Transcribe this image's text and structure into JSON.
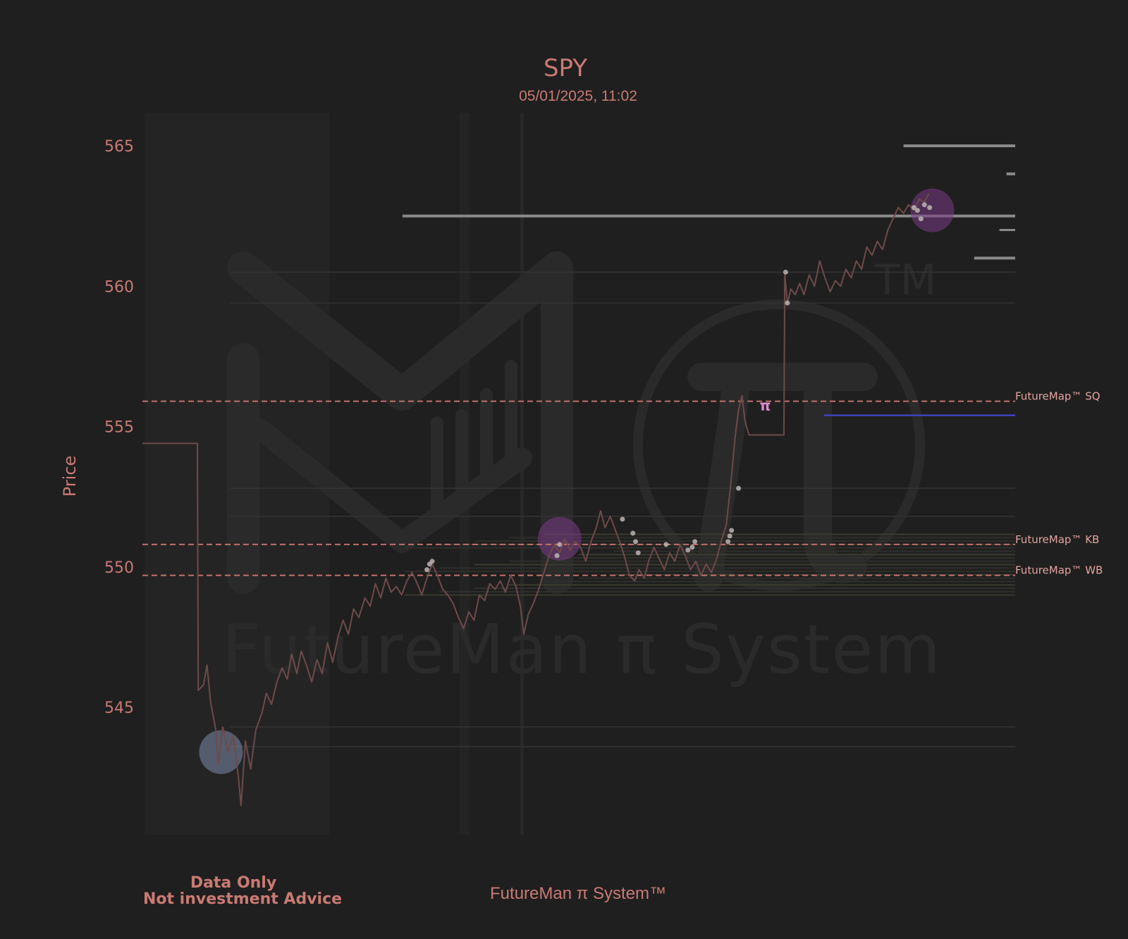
{
  "title": "SPY",
  "subtitle": "05/01/2025, 11:02",
  "watermark": {
    "text": "FutureMan π System",
    "tm": "TM"
  },
  "footer_left": {
    "line1": "Data Only",
    "line2": "Not investment Advice"
  },
  "footer_center": "FutureMan π System™",
  "colors": {
    "background": "#1f1f1f",
    "text": "#c97a73",
    "price_line": "#6e4a4a",
    "level_dashed": "#c0706c",
    "highlight_blue": "#8ea2c8",
    "highlight_purple": "#7a3a85",
    "pi_marker": "#d98cd0",
    "blue_level": "#4848e0",
    "gray_level": "#8a8a8a"
  },
  "chart_data": {
    "type": "line",
    "title": "SPY",
    "subtitle": "05/01/2025, 11:02",
    "xlabel": "",
    "ylabel": "Price",
    "ylim": [
      539.5,
      566.2
    ],
    "yticks": [
      545,
      550,
      555,
      560,
      565
    ],
    "x_range": [
      0,
      100
    ],
    "series": [
      {
        "values_xy": [
          [
            0,
            554.4
          ],
          [
            6.3,
            554.4
          ],
          [
            6.4,
            545.6
          ],
          [
            7.0,
            545.8
          ],
          [
            7.4,
            546.5
          ],
          [
            7.8,
            545.2
          ],
          [
            8.4,
            544.2
          ],
          [
            8.7,
            543.0
          ],
          [
            9.2,
            544.3
          ],
          [
            9.8,
            543.4
          ],
          [
            10.4,
            544.0
          ],
          [
            11.0,
            542.5
          ],
          [
            11.3,
            541.5
          ],
          [
            11.8,
            543.8
          ],
          [
            12.4,
            542.8
          ],
          [
            13.0,
            544.2
          ],
          [
            13.7,
            544.8
          ],
          [
            14.2,
            545.5
          ],
          [
            14.8,
            545.1
          ],
          [
            15.4,
            545.9
          ],
          [
            16.0,
            546.4
          ],
          [
            16.6,
            546.0
          ],
          [
            17.1,
            546.9
          ],
          [
            17.7,
            546.2
          ],
          [
            18.2,
            547.0
          ],
          [
            18.8,
            546.5
          ],
          [
            19.4,
            545.9
          ],
          [
            20.0,
            546.7
          ],
          [
            20.6,
            546.2
          ],
          [
            21.2,
            547.3
          ],
          [
            21.8,
            546.6
          ],
          [
            22.4,
            547.5
          ],
          [
            23.0,
            548.1
          ],
          [
            23.6,
            547.6
          ],
          [
            24.2,
            548.5
          ],
          [
            24.8,
            548.2
          ],
          [
            25.5,
            548.9
          ],
          [
            26.1,
            548.6
          ],
          [
            26.7,
            549.4
          ],
          [
            27.3,
            548.9
          ],
          [
            27.9,
            549.6
          ],
          [
            28.5,
            549.1
          ],
          [
            29.1,
            549.3
          ],
          [
            29.7,
            549.0
          ],
          [
            30.3,
            549.5
          ],
          [
            30.9,
            549.8
          ],
          [
            31.5,
            549.4
          ],
          [
            32.0,
            549.0
          ],
          [
            32.6,
            549.6
          ],
          [
            33.2,
            550.1
          ],
          [
            33.8,
            549.7
          ],
          [
            34.4,
            549.2
          ],
          [
            35.0,
            549.0
          ],
          [
            35.6,
            548.7
          ],
          [
            36.2,
            548.2
          ],
          [
            36.8,
            547.8
          ],
          [
            37.4,
            548.4
          ],
          [
            38.0,
            548.1
          ],
          [
            38.6,
            549.0
          ],
          [
            39.2,
            548.8
          ],
          [
            39.8,
            549.4
          ],
          [
            40.4,
            549.2
          ],
          [
            41.0,
            549.5
          ],
          [
            41.6,
            549.1
          ],
          [
            42.2,
            549.7
          ],
          [
            42.8,
            549.3
          ],
          [
            43.3,
            548.6
          ],
          [
            43.7,
            547.6
          ],
          [
            44.2,
            548.3
          ],
          [
            44.8,
            548.7
          ],
          [
            45.4,
            549.2
          ],
          [
            46.0,
            549.8
          ],
          [
            46.6,
            550.4
          ],
          [
            47.2,
            550.8
          ],
          [
            47.8,
            550.5
          ],
          [
            48.4,
            551.0
          ],
          [
            49.0,
            550.6
          ],
          [
            49.6,
            550.9
          ],
          [
            50.2,
            550.7
          ],
          [
            50.8,
            550.2
          ],
          [
            51.4,
            550.9
          ],
          [
            52.0,
            551.4
          ],
          [
            52.5,
            552.0
          ],
          [
            53.0,
            551.4
          ],
          [
            53.6,
            551.8
          ],
          [
            54.2,
            551.3
          ],
          [
            54.8,
            550.8
          ],
          [
            55.3,
            550.3
          ],
          [
            55.8,
            549.7
          ],
          [
            56.4,
            549.5
          ],
          [
            56.9,
            549.9
          ],
          [
            57.5,
            549.6
          ],
          [
            58.0,
            550.2
          ],
          [
            58.6,
            550.7
          ],
          [
            59.2,
            550.3
          ],
          [
            59.8,
            549.9
          ],
          [
            60.4,
            550.5
          ],
          [
            61.0,
            550.2
          ],
          [
            61.6,
            550.8
          ],
          [
            62.2,
            550.4
          ],
          [
            62.8,
            549.9
          ],
          [
            63.4,
            550.2
          ],
          [
            64.0,
            549.7
          ],
          [
            64.6,
            550.1
          ],
          [
            65.2,
            549.8
          ],
          [
            65.8,
            550.3
          ],
          [
            66.4,
            551.0
          ],
          [
            66.9,
            551.5
          ],
          [
            67.4,
            552.9
          ],
          [
            67.9,
            554.6
          ],
          [
            68.3,
            555.6
          ],
          [
            68.7,
            556.1
          ],
          [
            69.0,
            555.3
          ],
          [
            69.2,
            555.0
          ],
          [
            69.5,
            554.7
          ],
          [
            73.5,
            554.7
          ],
          [
            73.6,
            560.4
          ],
          [
            73.9,
            559.4
          ],
          [
            74.3,
            559.9
          ],
          [
            74.8,
            559.7
          ],
          [
            75.3,
            560.1
          ],
          [
            75.8,
            559.7
          ],
          [
            76.4,
            560.4
          ],
          [
            77.0,
            560.0
          ],
          [
            77.6,
            560.9
          ],
          [
            78.2,
            560.3
          ],
          [
            78.8,
            559.8
          ],
          [
            79.4,
            560.2
          ],
          [
            80.0,
            560.0
          ],
          [
            80.6,
            560.6
          ],
          [
            81.2,
            560.3
          ],
          [
            81.8,
            560.9
          ],
          [
            82.4,
            560.6
          ],
          [
            83.0,
            561.4
          ],
          [
            83.6,
            561.1
          ],
          [
            84.2,
            561.6
          ],
          [
            84.8,
            561.3
          ],
          [
            85.4,
            562.0
          ],
          [
            86.0,
            562.4
          ],
          [
            86.6,
            562.8
          ],
          [
            87.2,
            562.6
          ],
          [
            87.8,
            562.9
          ],
          [
            88.4,
            562.7
          ],
          [
            89.0,
            563.1
          ],
          [
            89.6,
            563.0
          ],
          [
            90.1,
            563.3
          ]
        ]
      }
    ],
    "levels": [
      {
        "label": "FutureMap™ SQ",
        "value": 555.9
      },
      {
        "label": "FutureMap™ KB",
        "value": 550.8
      },
      {
        "label": "FutureMap™ WB",
        "value": 549.7
      }
    ],
    "highlight_circles": [
      {
        "x": 9.0,
        "y": 543.4,
        "color": "blue"
      },
      {
        "x": 47.8,
        "y": 551.0,
        "color": "purple"
      },
      {
        "x": 90.5,
        "y": 562.7,
        "color": "purple"
      }
    ],
    "pi_marker": {
      "x": 71.2,
      "y": 555.8,
      "symbol": "π"
    },
    "dots": [
      [
        32.6,
        549.9
      ],
      [
        32.9,
        550.1
      ],
      [
        33.2,
        550.2
      ],
      [
        47.5,
        550.4
      ],
      [
        47.8,
        550.8
      ],
      [
        55.0,
        551.7
      ],
      [
        56.2,
        551.2
      ],
      [
        56.5,
        550.9
      ],
      [
        56.8,
        550.5
      ],
      [
        60.0,
        550.8
      ],
      [
        62.5,
        550.6
      ],
      [
        63.0,
        550.7
      ],
      [
        63.3,
        550.9
      ],
      [
        67.1,
        550.9
      ],
      [
        67.3,
        551.1
      ],
      [
        67.5,
        551.3
      ],
      [
        68.3,
        552.8
      ],
      [
        73.7,
        560.5
      ],
      [
        73.9,
        559.4
      ],
      [
        88.4,
        562.8
      ],
      [
        88.8,
        562.7
      ],
      [
        89.2,
        562.4
      ],
      [
        89.6,
        562.9
      ],
      [
        90.2,
        562.8
      ]
    ],
    "right_levels": [
      {
        "value": 565.0,
        "x_start": 87.2,
        "color": "gray",
        "weight": 4
      },
      {
        "value": 562.5,
        "x_start": 29.8,
        "color": "gray",
        "weight": 4
      },
      {
        "value": 561.0,
        "x_start": 95.3,
        "color": "gray",
        "weight": 4
      },
      {
        "value": 564.0,
        "x_start": 99.0,
        "color": "gray",
        "weight": 4
      },
      {
        "value": 562.0,
        "x_start": 98.2,
        "color": "gray",
        "weight": 3
      },
      {
        "value": 555.4,
        "x_start": 78.1,
        "color": "blue",
        "weight": 2
      }
    ]
  }
}
